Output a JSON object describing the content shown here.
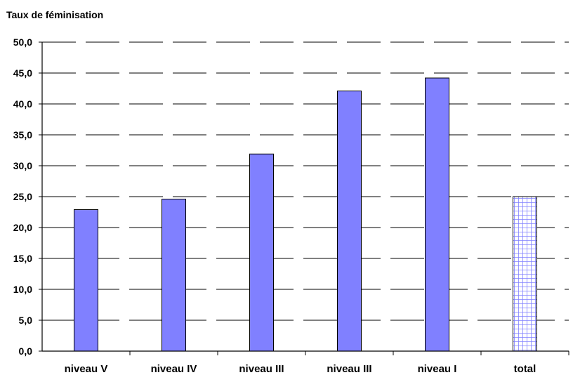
{
  "chart_data": {
    "type": "bar",
    "title": "Taux de féminisation",
    "xlabel": "",
    "ylabel": "",
    "categories": [
      "niveau V",
      "niveau IV",
      "niveau III",
      "niveau III",
      "niveau I",
      "total"
    ],
    "values": [
      22.9,
      24.6,
      31.9,
      42.1,
      44.2,
      25.0
    ],
    "ylim": [
      0,
      50
    ],
    "yticks": [
      0,
      5,
      10,
      15,
      20,
      25,
      30,
      35,
      40,
      45,
      50
    ],
    "ytick_labels": [
      "0,0",
      "5,0",
      "10,0",
      "15,0",
      "20,0",
      "25,0",
      "30,0",
      "35,0",
      "40,0",
      "45,0",
      "50,0"
    ],
    "grid": true,
    "grid_style": "dashed",
    "legend": "none",
    "colors": {
      "bar": "#8080ff",
      "bar_stroke": "#000000",
      "total_pattern": "#8080ff",
      "total_background": "#ffffff",
      "grid": "#000000",
      "axis": "#000000"
    },
    "highlight_category": "total"
  }
}
